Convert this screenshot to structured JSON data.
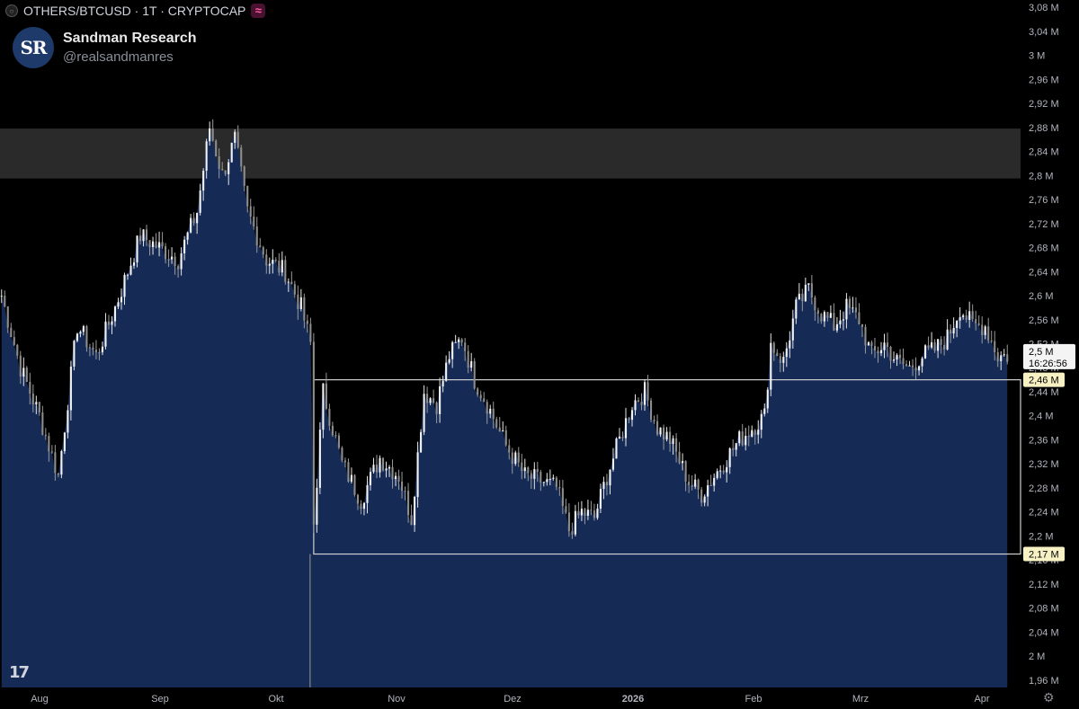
{
  "header": {
    "symbol": "OTHERS/BTCUSD · 1T · CRYPTOCAP",
    "live_glyph": "≈",
    "symbol_icon": "exchange-dot-icon"
  },
  "brand": {
    "initials": "SR",
    "name": "Sandman Research",
    "handle": "@realsandmanres"
  },
  "watermark": "17",
  "settings_glyph": "⚙",
  "chart_data": {
    "type": "candlestick-area",
    "y_ticks": [
      "3,08 M",
      "3,04 M",
      "3 M",
      "2,96 M",
      "2,92 M",
      "2,88 M",
      "2,84 M",
      "2,8 M",
      "2,76 M",
      "2,72 M",
      "2,68 M",
      "2,64 M",
      "2,6 M",
      "2,56 M",
      "2,52 M",
      "2,48 M",
      "2,44 M",
      "2,4 M",
      "2,36 M",
      "2,32 M",
      "2,28 M",
      "2,24 M",
      "2,2 M",
      "2,16 M",
      "2,12 M",
      "2,08 M",
      "2,04 M",
      "2 M",
      "1,96 M"
    ],
    "y_tick_values": [
      3.08,
      3.04,
      3.0,
      2.96,
      2.92,
      2.88,
      2.84,
      2.8,
      2.76,
      2.72,
      2.68,
      2.64,
      2.6,
      2.56,
      2.52,
      2.48,
      2.44,
      2.4,
      2.36,
      2.32,
      2.28,
      2.24,
      2.2,
      2.16,
      2.12,
      2.08,
      2.04,
      2.0,
      1.96
    ],
    "x_ticks": [
      {
        "label": "Aug",
        "bold": false
      },
      {
        "label": "Sep",
        "bold": false
      },
      {
        "label": "Okt",
        "bold": false
      },
      {
        "label": "Nov",
        "bold": false
      },
      {
        "label": "Dez",
        "bold": false
      },
      {
        "label": "2026",
        "bold": true
      },
      {
        "label": "Feb",
        "bold": false
      },
      {
        "label": "Mrz",
        "bold": false
      },
      {
        "label": "Apr",
        "bold": false
      }
    ],
    "ylim": [
      1.948,
      3.092
    ],
    "resistance_zone": [
      2.795,
      2.878
    ],
    "range_box": {
      "low": 2.17,
      "high": 2.46
    },
    "price_labels": [
      {
        "label": "2,46 M",
        "value": 2.46,
        "highlight": true
      },
      {
        "label": "2,17 M",
        "value": 2.17,
        "highlight": true
      }
    ],
    "current": {
      "price": "2,5 M",
      "value": 2.5,
      "countdown": "16:26:56"
    },
    "closes_keypoints": [
      [
        0,
        2.6
      ],
      [
        6,
        2.48
      ],
      [
        12,
        2.4
      ],
      [
        18,
        2.3
      ],
      [
        24,
        2.55
      ],
      [
        30,
        2.5
      ],
      [
        36,
        2.58
      ],
      [
        44,
        2.7
      ],
      [
        50,
        2.68
      ],
      [
        56,
        2.66
      ],
      [
        62,
        2.74
      ],
      [
        66,
        2.88
      ],
      [
        70,
        2.8
      ],
      [
        74,
        2.86
      ],
      [
        78,
        2.74
      ],
      [
        84,
        2.66
      ],
      [
        90,
        2.64
      ],
      [
        95,
        2.58
      ],
      [
        98,
        2.52
      ],
      [
        99,
        2.22
      ],
      [
        102,
        2.44
      ],
      [
        108,
        2.32
      ],
      [
        114,
        2.26
      ],
      [
        120,
        2.33
      ],
      [
        126,
        2.3
      ],
      [
        130,
        2.23
      ],
      [
        134,
        2.44
      ],
      [
        138,
        2.42
      ],
      [
        142,
        2.5
      ],
      [
        146,
        2.53
      ],
      [
        150,
        2.46
      ],
      [
        154,
        2.42
      ],
      [
        160,
        2.35
      ],
      [
        166,
        2.3
      ],
      [
        172,
        2.29
      ],
      [
        176,
        2.28
      ],
      [
        180,
        2.21
      ],
      [
        184,
        2.24
      ],
      [
        188,
        2.23
      ],
      [
        192,
        2.3
      ],
      [
        196,
        2.36
      ],
      [
        200,
        2.42
      ],
      [
        204,
        2.44
      ],
      [
        208,
        2.38
      ],
      [
        212,
        2.36
      ],
      [
        218,
        2.29
      ],
      [
        222,
        2.27
      ],
      [
        226,
        2.3
      ],
      [
        230,
        2.33
      ],
      [
        234,
        2.36
      ],
      [
        238,
        2.38
      ],
      [
        242,
        2.4
      ],
      [
        244,
        2.52
      ],
      [
        248,
        2.49
      ],
      [
        252,
        2.58
      ],
      [
        256,
        2.61
      ],
      [
        260,
        2.57
      ],
      [
        264,
        2.55
      ],
      [
        268,
        2.58
      ],
      [
        272,
        2.56
      ],
      [
        276,
        2.5
      ],
      [
        280,
        2.52
      ],
      [
        284,
        2.49
      ],
      [
        288,
        2.48
      ],
      [
        292,
        2.5
      ],
      [
        296,
        2.51
      ],
      [
        300,
        2.53
      ],
      [
        304,
        2.58
      ],
      [
        308,
        2.55
      ],
      [
        312,
        2.55
      ],
      [
        316,
        2.5
      ],
      [
        319,
        2.5
      ]
    ],
    "n_days": 320
  }
}
